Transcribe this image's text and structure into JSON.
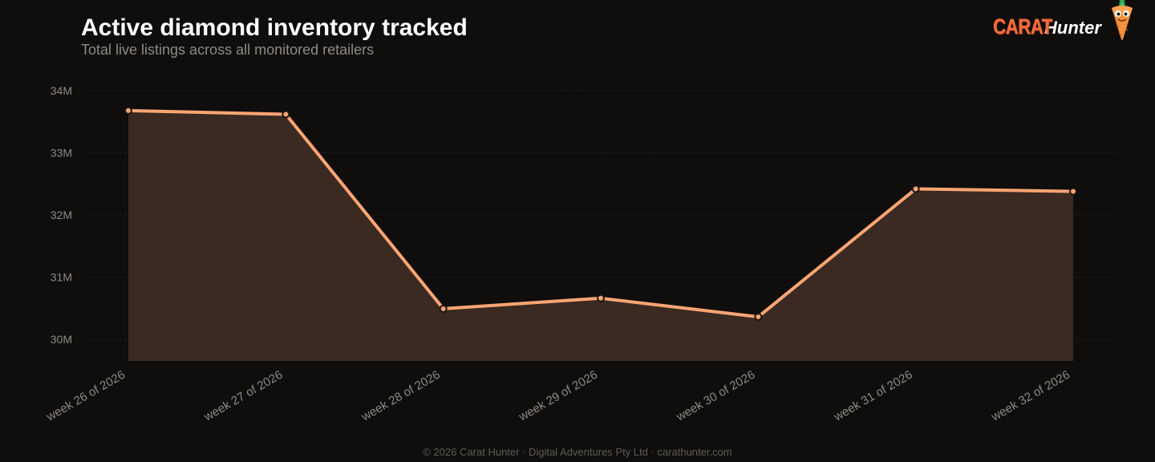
{
  "header": {
    "title": "Active diamond inventory tracked",
    "subtitle": "Total live listings across all monitored retailers"
  },
  "brand": {
    "name_part1": "CARAT",
    "name_part2": "Hunter",
    "mascot_icon": "carrot-mascot-icon"
  },
  "footer": {
    "text": "© 2026 Carat Hunter · Digital Adventures Pty Ltd · carathunter.com"
  },
  "colors": {
    "background": "#0f0e0d",
    "line": "#ffa574",
    "area": "#3a2a21",
    "grid": "#2a2826",
    "brand_orange": "#f36b3d"
  },
  "chart_data": {
    "type": "area",
    "title": "Active diamond inventory tracked",
    "subtitle": "Total live listings across all monitored retailers",
    "xlabel": "",
    "ylabel": "",
    "categories": [
      "week 26 of 2026",
      "week 27 of 2026",
      "week 28 of 2026",
      "week 29 of 2026",
      "week 30 of 2026",
      "week 31 of 2026",
      "week 32 of 2026"
    ],
    "series": [
      {
        "values": [
          33.68,
          33.62,
          30.49,
          30.66,
          30.36,
          32.42,
          32.38
        ]
      }
    ],
    "value_unit": "millions",
    "yticks": [
      30,
      31,
      32,
      33,
      34
    ],
    "ytick_labels": [
      "30M",
      "31M",
      "32M",
      "33M",
      "34M"
    ],
    "ylim": [
      29.65,
      34.35
    ],
    "grid": true,
    "legend": "none"
  }
}
